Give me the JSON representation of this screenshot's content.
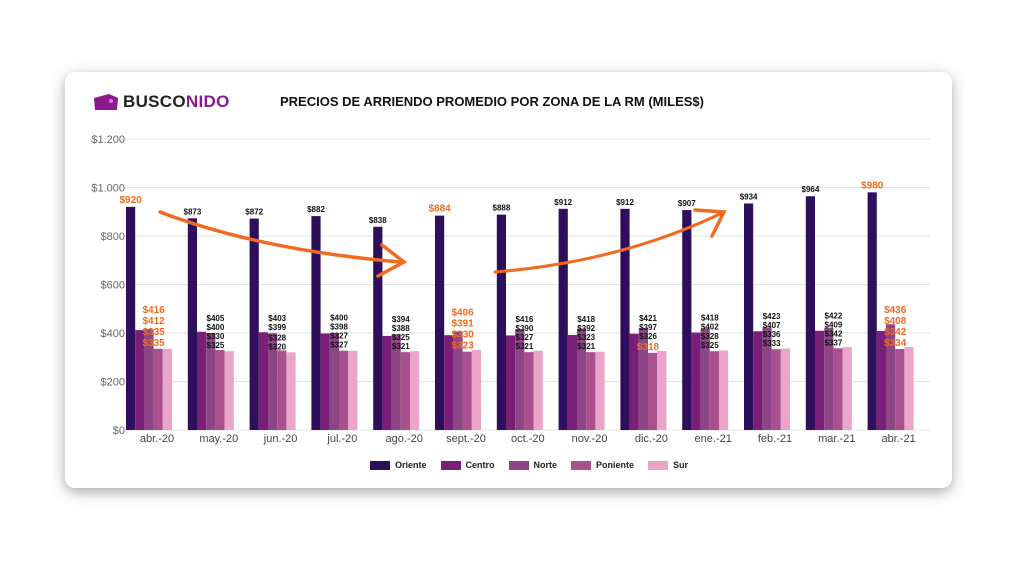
{
  "logo": {
    "part1": "BUSCO",
    "part2": "NIDO"
  },
  "chart_data": {
    "type": "bar",
    "title": "PRECIOS DE ARRIENDO PROMEDIO POR ZONA DE LA RM (MILES$)",
    "categories": [
      "abr.-20",
      "may.-20",
      "jun.-20",
      "jul.-20",
      "ago.-20",
      "sept.-20",
      "oct.-20",
      "nov.-20",
      "dic.-20",
      "ene.-21",
      "feb.-21",
      "mar.-21",
      "abr.-21"
    ],
    "ylim": [
      0,
      1200
    ],
    "yticks": [
      0,
      200,
      400,
      600,
      800,
      1000,
      1200
    ],
    "ytick_labels": [
      "$0",
      "$200",
      "$400",
      "$600",
      "$800",
      "$1.000",
      "$1.200"
    ],
    "grid": true,
    "legend_position": "bottom",
    "series": [
      {
        "name": "Oriente",
        "color": "#2e0f5c",
        "values": [
          920,
          873,
          872,
          882,
          838,
          884,
          888,
          912,
          912,
          907,
          934,
          964,
          980
        ]
      },
      {
        "name": "Centro",
        "color": "#7a1f78",
        "values": [
          412,
          405,
          403,
          398,
          388,
          391,
          390,
          392,
          397,
          402,
          407,
          409,
          408
        ]
      },
      {
        "name": "Norte",
        "color": "#8c4585",
        "values": [
          416,
          400,
          399,
          400,
          394,
          406,
          416,
          418,
          421,
          418,
          423,
          422,
          436
        ]
      },
      {
        "name": "Poniente",
        "color": "#a9508f",
        "values": [
          335,
          330,
          328,
          327,
          321,
          323,
          321,
          321,
          318,
          325,
          333,
          337,
          334
        ]
      },
      {
        "name": "Sur",
        "color": "#eba5c9",
        "values": [
          335,
          325,
          320,
          327,
          325,
          330,
          327,
          323,
          326,
          328,
          336,
          342,
          342
        ]
      }
    ],
    "highlighted_labels": [
      [
        0,
        0
      ],
      [
        0,
        1
      ],
      [
        0,
        2
      ],
      [
        0,
        3
      ],
      [
        0,
        4
      ],
      [
        5,
        0
      ],
      [
        5,
        1
      ],
      [
        5,
        2
      ],
      [
        5,
        3
      ],
      [
        5,
        4
      ],
      [
        8,
        3
      ],
      [
        12,
        0
      ],
      [
        12,
        1
      ],
      [
        12,
        2
      ],
      [
        12,
        3
      ],
      [
        12,
        4
      ]
    ],
    "highlight_color": "#f26a21"
  }
}
